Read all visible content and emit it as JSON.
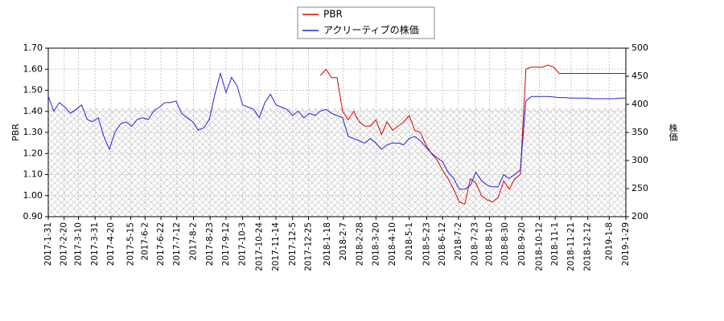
{
  "chart_data": {
    "type": "line",
    "y_label": "PBR",
    "y2_label": "株価",
    "grid": true,
    "legend": "upper center",
    "xlim": [
      "2017-1-31",
      "2019-1-29"
    ],
    "xticks": [
      "2017-1-31",
      "2017-2-20",
      "2017-3-10",
      "2017-3-31",
      "2017-4-20",
      "2017-5-15",
      "2017-6-2",
      "2017-6-22",
      "2017-7-12",
      "2017-8-2",
      "2017-8-23",
      "2017-9-12",
      "2017-10-3",
      "2017-10-24",
      "2017-11-14",
      "2017-12-5",
      "2017-12-25",
      "2018-1-18",
      "2018-2-7",
      "2018-2-28",
      "2018-3-20",
      "2018-4-10",
      "2018-5-1",
      "2018-5-23",
      "2018-6-12",
      "2018-7-2",
      "2018-7-23",
      "2018-8-10",
      "2018-8-30",
      "2018-9-20",
      "2018-10-12",
      "2018-11-1",
      "2018-11-21",
      "2018-12-12",
      "2019-1-8",
      "2019-1-29"
    ],
    "ylim": [
      0.9,
      1.7
    ],
    "yticks": [
      {
        "value": 0.9,
        "label": "0.90"
      },
      {
        "value": 1.0,
        "label": "1.00"
      },
      {
        "value": 1.1,
        "label": "1.10"
      },
      {
        "value": 1.2,
        "label": "1.20"
      },
      {
        "value": 1.3,
        "label": "1.30"
      },
      {
        "value": 1.4,
        "label": "1.40"
      },
      {
        "value": 1.5,
        "label": "1.50"
      },
      {
        "value": 1.6,
        "label": "1.60"
      },
      {
        "value": 1.7,
        "label": "1.70"
      }
    ],
    "y2lim": [
      200,
      500
    ],
    "y2ticks": [
      200,
      250,
      300,
      350,
      400,
      450,
      500
    ],
    "x": [
      "2017-1-31",
      "2017-2-7",
      "2017-2-14",
      "2017-2-21",
      "2017-2-28",
      "2017-3-7",
      "2017-3-14",
      "2017-3-21",
      "2017-3-28",
      "2017-4-4",
      "2017-4-11",
      "2017-4-18",
      "2017-4-25",
      "2017-5-2",
      "2017-5-9",
      "2017-5-16",
      "2017-5-23",
      "2017-5-30",
      "2017-6-6",
      "2017-6-13",
      "2017-6-20",
      "2017-6-27",
      "2017-7-4",
      "2017-7-11",
      "2017-7-18",
      "2017-7-25",
      "2017-8-1",
      "2017-8-8",
      "2017-8-15",
      "2017-8-22",
      "2017-8-29",
      "2017-9-5",
      "2017-9-12",
      "2017-9-19",
      "2017-9-26",
      "2017-10-3",
      "2017-10-10",
      "2017-10-17",
      "2017-10-24",
      "2017-10-31",
      "2017-11-7",
      "2017-11-14",
      "2017-11-21",
      "2017-11-28",
      "2017-12-5",
      "2017-12-12",
      "2017-12-19",
      "2017-12-26",
      "2018-1-2",
      "2018-1-9",
      "2018-1-16",
      "2018-1-23",
      "2018-1-30",
      "2018-2-6",
      "2018-2-13",
      "2018-2-20",
      "2018-2-27",
      "2018-3-6",
      "2018-3-13",
      "2018-3-20",
      "2018-3-27",
      "2018-4-3",
      "2018-4-10",
      "2018-4-17",
      "2018-4-24",
      "2018-5-1",
      "2018-5-8",
      "2018-5-15",
      "2018-5-22",
      "2018-5-29",
      "2018-6-5",
      "2018-6-12",
      "2018-6-19",
      "2018-6-26",
      "2018-7-3",
      "2018-7-10",
      "2018-7-17",
      "2018-7-24",
      "2018-7-31",
      "2018-8-7",
      "2018-8-14",
      "2018-8-21",
      "2018-8-28",
      "2018-9-4",
      "2018-9-11",
      "2018-9-18",
      "2018-9-25",
      "2018-10-2",
      "2018-10-9",
      "2018-10-16",
      "2018-10-23",
      "2018-10-30",
      "2018-11-6",
      "2018-11-13",
      "2018-11-20",
      "2018-11-27",
      "2018-12-4",
      "2018-12-11",
      "2018-12-18",
      "2018-12-25",
      "2019-1-1",
      "2019-1-8",
      "2019-1-15",
      "2019-1-22",
      "2019-1-29"
    ],
    "series": [
      {
        "name": "PBR",
        "color": "#dd0000",
        "values": [
          null,
          null,
          null,
          null,
          null,
          null,
          null,
          null,
          null,
          null,
          null,
          null,
          null,
          null,
          null,
          null,
          null,
          null,
          null,
          null,
          null,
          null,
          null,
          null,
          null,
          null,
          null,
          null,
          null,
          null,
          null,
          null,
          null,
          null,
          null,
          null,
          null,
          null,
          null,
          null,
          null,
          null,
          null,
          null,
          null,
          null,
          null,
          null,
          null,
          1.57,
          1.6,
          1.56,
          1.56,
          1.4,
          1.36,
          1.4,
          1.35,
          1.33,
          1.33,
          1.36,
          1.29,
          1.35,
          1.31,
          1.33,
          1.35,
          1.38,
          1.31,
          1.3,
          1.24,
          1.2,
          1.17,
          1.12,
          1.08,
          1.03,
          0.97,
          0.96,
          1.08,
          1.06,
          1.0,
          0.98,
          0.97,
          0.99,
          1.07,
          1.03,
          1.08,
          1.1,
          1.6,
          1.61,
          1.61,
          1.61,
          1.62,
          1.61,
          1.58,
          1.58,
          1.58,
          1.58,
          1.58,
          1.58,
          1.58,
          1.58,
          1.58,
          1.58,
          1.58,
          1.58,
          1.58
        ]
      },
      {
        "name": "アクリーティブの株価",
        "color": "#2222dd",
        "axis": "y2",
        "values": [
          414,
          388,
          403,
          395,
          384,
          391,
          399,
          373,
          369,
          376,
          343,
          320,
          350,
          365,
          369,
          361,
          373,
          376,
          373,
          388,
          395,
          403,
          403,
          406,
          384,
          376,
          369,
          354,
          358,
          373,
          418,
          455,
          421,
          448,
          433,
          399,
          395,
          391,
          376,
          403,
          418,
          399,
          395,
          391,
          380,
          388,
          376,
          384,
          380,
          388,
          391,
          384,
          380,
          376,
          343,
          339,
          335,
          331,
          339,
          331,
          320,
          328,
          331,
          331,
          328,
          339,
          343,
          335,
          324,
          313,
          305,
          298,
          279,
          268,
          249,
          249,
          256,
          279,
          264,
          256,
          253,
          253,
          275,
          268,
          275,
          283,
          406,
          414,
          414,
          414,
          414,
          413,
          412,
          412,
          411,
          411,
          411,
          411,
          410,
          410,
          410,
          410,
          410,
          411,
          411
        ]
      }
    ]
  }
}
